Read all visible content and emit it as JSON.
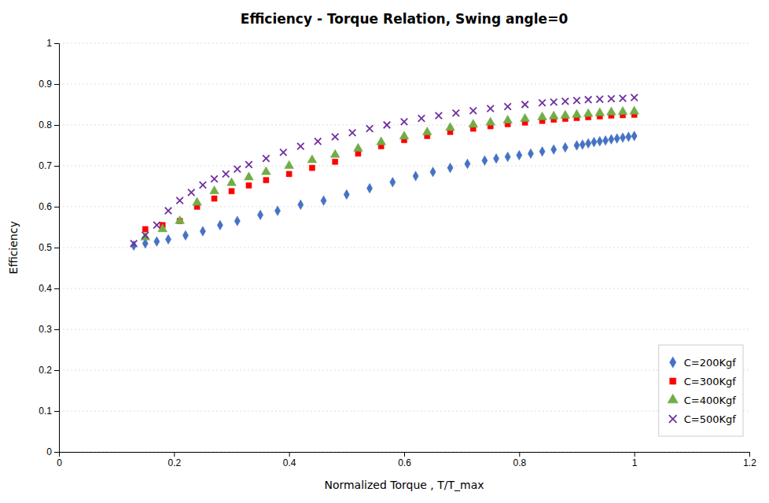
{
  "chart_data": {
    "type": "scatter",
    "title": "Efficiency - Torque Relation, Swing angle=0",
    "xlabel": "Normalized Torque , T/T_max",
    "ylabel": "Efficiency",
    "xlim": [
      0,
      1.2
    ],
    "ylim": [
      0,
      1.0
    ],
    "xticks": [
      0,
      0.2,
      0.4,
      0.6,
      0.8,
      1.0,
      1.2
    ],
    "yticks": [
      0,
      0.1,
      0.2,
      0.3,
      0.4,
      0.5,
      0.6,
      0.7,
      0.8,
      0.9,
      1.0
    ],
    "grid": true,
    "legend": "lower right",
    "series": [
      {
        "name": "C=200Kgf",
        "color": "#4472C4",
        "marker": "diamond",
        "x": [
          0.13,
          0.15,
          0.17,
          0.19,
          0.22,
          0.25,
          0.28,
          0.31,
          0.35,
          0.38,
          0.42,
          0.46,
          0.5,
          0.54,
          0.58,
          0.62,
          0.65,
          0.68,
          0.71,
          0.74,
          0.76,
          0.78,
          0.8,
          0.82,
          0.84,
          0.86,
          0.88,
          0.9,
          0.91,
          0.92,
          0.93,
          0.94,
          0.95,
          0.96,
          0.97,
          0.98,
          0.99,
          1.0
        ],
        "values": [
          0.505,
          0.51,
          0.515,
          0.52,
          0.53,
          0.54,
          0.555,
          0.565,
          0.58,
          0.59,
          0.605,
          0.615,
          0.63,
          0.645,
          0.66,
          0.675,
          0.685,
          0.695,
          0.705,
          0.713,
          0.718,
          0.722,
          0.726,
          0.73,
          0.735,
          0.74,
          0.745,
          0.75,
          0.752,
          0.755,
          0.758,
          0.76,
          0.762,
          0.765,
          0.767,
          0.769,
          0.771,
          0.773
        ]
      },
      {
        "name": "C=300Kgf",
        "color": "#FF0000",
        "marker": "square",
        "x": [
          0.15,
          0.18,
          0.21,
          0.24,
          0.27,
          0.3,
          0.33,
          0.36,
          0.4,
          0.44,
          0.48,
          0.52,
          0.56,
          0.6,
          0.64,
          0.68,
          0.72,
          0.75,
          0.78,
          0.81,
          0.84,
          0.86,
          0.88,
          0.9,
          0.92,
          0.94,
          0.96,
          0.98,
          1.0
        ],
        "values": [
          0.545,
          0.555,
          0.565,
          0.6,
          0.62,
          0.638,
          0.652,
          0.665,
          0.68,
          0.695,
          0.71,
          0.73,
          0.748,
          0.763,
          0.773,
          0.783,
          0.791,
          0.797,
          0.802,
          0.806,
          0.81,
          0.813,
          0.815,
          0.817,
          0.819,
          0.821,
          0.823,
          0.824,
          0.825
        ]
      },
      {
        "name": "C=400Kgf",
        "color": "#70AD47",
        "marker": "triangle",
        "x": [
          0.15,
          0.18,
          0.21,
          0.24,
          0.27,
          0.3,
          0.33,
          0.36,
          0.4,
          0.44,
          0.48,
          0.52,
          0.56,
          0.6,
          0.64,
          0.68,
          0.72,
          0.75,
          0.78,
          0.81,
          0.84,
          0.86,
          0.88,
          0.9,
          0.92,
          0.94,
          0.96,
          0.98,
          1.0
        ],
        "values": [
          0.525,
          0.545,
          0.565,
          0.61,
          0.638,
          0.658,
          0.672,
          0.685,
          0.7,
          0.714,
          0.727,
          0.742,
          0.758,
          0.772,
          0.782,
          0.793,
          0.801,
          0.806,
          0.811,
          0.815,
          0.819,
          0.821,
          0.823,
          0.825,
          0.827,
          0.829,
          0.831,
          0.832,
          0.833
        ]
      },
      {
        "name": "C=500Kgf",
        "color": "#7030A0",
        "marker": "cross",
        "x": [
          0.13,
          0.15,
          0.17,
          0.19,
          0.21,
          0.23,
          0.25,
          0.27,
          0.29,
          0.31,
          0.33,
          0.36,
          0.39,
          0.42,
          0.45,
          0.48,
          0.51,
          0.54,
          0.57,
          0.6,
          0.63,
          0.66,
          0.69,
          0.72,
          0.75,
          0.78,
          0.81,
          0.84,
          0.86,
          0.88,
          0.9,
          0.92,
          0.94,
          0.96,
          0.98,
          1.0
        ],
        "values": [
          0.51,
          0.53,
          0.555,
          0.59,
          0.615,
          0.635,
          0.653,
          0.668,
          0.68,
          0.692,
          0.703,
          0.718,
          0.733,
          0.748,
          0.76,
          0.771,
          0.781,
          0.791,
          0.8,
          0.808,
          0.816,
          0.823,
          0.829,
          0.835,
          0.84,
          0.845,
          0.85,
          0.854,
          0.856,
          0.858,
          0.86,
          0.862,
          0.863,
          0.864,
          0.865,
          0.867
        ]
      }
    ]
  }
}
